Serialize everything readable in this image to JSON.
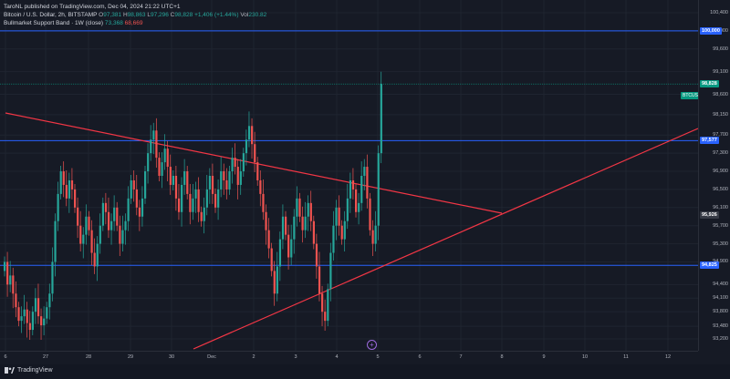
{
  "header": {
    "publisher": "TaroNL published on TradingView.com, Dec 04, 2024 21:22 UTC+1",
    "symbol": "Bitcoin / U.S. Dollar, 2h, BITSTAMP",
    "o_label": "O",
    "o_value": "97,381",
    "h_label": "H",
    "h_value": "98,863",
    "l_label": "L",
    "l_value": "97,296",
    "c_label": "C",
    "c_value": "98,828",
    "change": "+1,406 (+1.44%)",
    "vol_label": "Vol",
    "vol_value": "230.82"
  },
  "indicator": {
    "name": "Bullmarket Support Band · 1W (close)",
    "value1": "73,368",
    "value2": "68,669"
  },
  "price_axis": {
    "labels": [
      "100,400",
      "100,000",
      "99,600",
      "99,100",
      "98,600",
      "98,150",
      "97,700",
      "97,300",
      "96,900",
      "96,500",
      "96,100",
      "95,700",
      "95,300",
      "94,900",
      "94,400",
      "94,100",
      "93,800",
      "93,480",
      "93,200"
    ],
    "tags": [
      {
        "text": "100,000",
        "color": "#2962ff"
      },
      {
        "text": "98,828",
        "color": "#089981"
      },
      {
        "text": "97,577",
        "color": "#2962ff"
      },
      {
        "text": "95,926",
        "color": "#363a45"
      },
      {
        "text": "94,825",
        "color": "#2962ff"
      }
    ],
    "symbol_tag": "BTCUSD"
  },
  "time_axis": {
    "labels": [
      "6",
      "27",
      "28",
      "29",
      "30",
      "Dec",
      "2",
      "3",
      "4",
      "5",
      "6",
      "7",
      "8",
      "9",
      "10",
      "11",
      "12"
    ]
  },
  "footer": {
    "logo_text": "TradingView"
  },
  "colors": {
    "up": "#26a69a",
    "down": "#ef5350",
    "hline": "#2962ff",
    "trend": "#f23645"
  },
  "chart_data": {
    "type": "candlestick",
    "price_scale": {
      "label_values": [
        100400,
        100000,
        99600,
        99100,
        98600,
        98150,
        97700,
        97300,
        96900,
        96500,
        96100,
        95700,
        95300,
        94900,
        94400,
        94100,
        93800,
        93480,
        93200
      ]
    },
    "horizontal_levels": [
      100000,
      98828,
      97577,
      94825
    ],
    "current_price": 98828,
    "interval": "2h",
    "ohlc_last": {
      "open": 97381,
      "high": 98863,
      "low": 97296,
      "close": 98828
    }
  }
}
